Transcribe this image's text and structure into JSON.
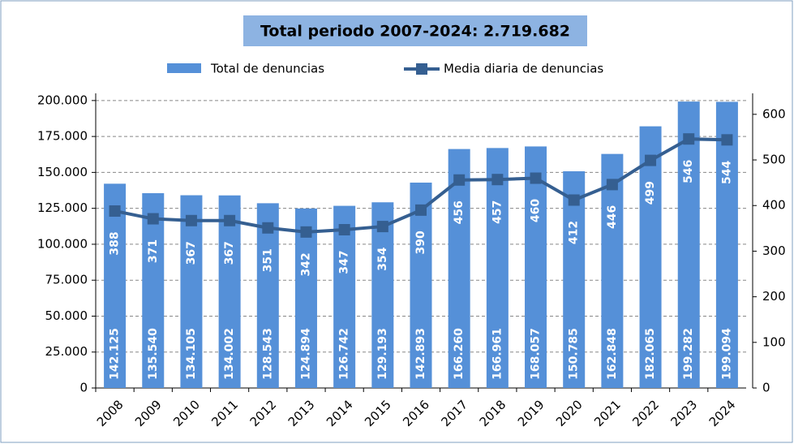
{
  "chart_data": {
    "type": "bar",
    "title": "Total periodo 2007-2024:  2.719.682",
    "categories": [
      "2008",
      "2009",
      "2010",
      "2011",
      "2012",
      "2013",
      "2014",
      "2015",
      "2016",
      "2017",
      "2018",
      "2019",
      "2020",
      "2021",
      "2022",
      "2023",
      "2024"
    ],
    "series": [
      {
        "name": "Total de denuncias",
        "type": "bar",
        "color": "#5590d8",
        "values": [
          142125,
          135540,
          134105,
          134002,
          128543,
          124894,
          126742,
          129193,
          142893,
          166260,
          166961,
          168057,
          150785,
          162848,
          182065,
          199282,
          199094
        ],
        "value_labels": [
          "142.125",
          "135.540",
          "134.105",
          "134.002",
          "128.543",
          "124.894",
          "126.742",
          "129.193",
          "142.893",
          "166.260",
          "166.961",
          "168.057",
          "150.785",
          "162.848",
          "182.065",
          "199.282",
          "199.094"
        ]
      },
      {
        "name": "Media diaria de denuncias",
        "type": "line",
        "axis": "y2",
        "color": "#355f91",
        "values": [
          388,
          371,
          367,
          367,
          351,
          342,
          347,
          354,
          390,
          456,
          457,
          460,
          412,
          446,
          499,
          546,
          544
        ]
      }
    ],
    "ylim": [
      0,
      205000
    ],
    "yticks": [
      0,
      {
        "value": 25000,
        "label": "25.000"
      },
      {
        "value": 50000,
        "label": "50.000"
      },
      {
        "value": 75000,
        "label": "75.000"
      },
      {
        "value": 100000,
        "label": "100.000"
      },
      {
        "value": 125000,
        "label": "125.000"
      },
      {
        "value": 150000,
        "label": "150.000"
      },
      {
        "value": 175000,
        "label": "175.000"
      },
      {
        "value": 200000,
        "label": "200.000"
      }
    ],
    "y2lim": [
      0,
      646
    ],
    "y2ticks": [
      0,
      100,
      200,
      300,
      400,
      500,
      600
    ],
    "grid": true,
    "legend": "top"
  }
}
